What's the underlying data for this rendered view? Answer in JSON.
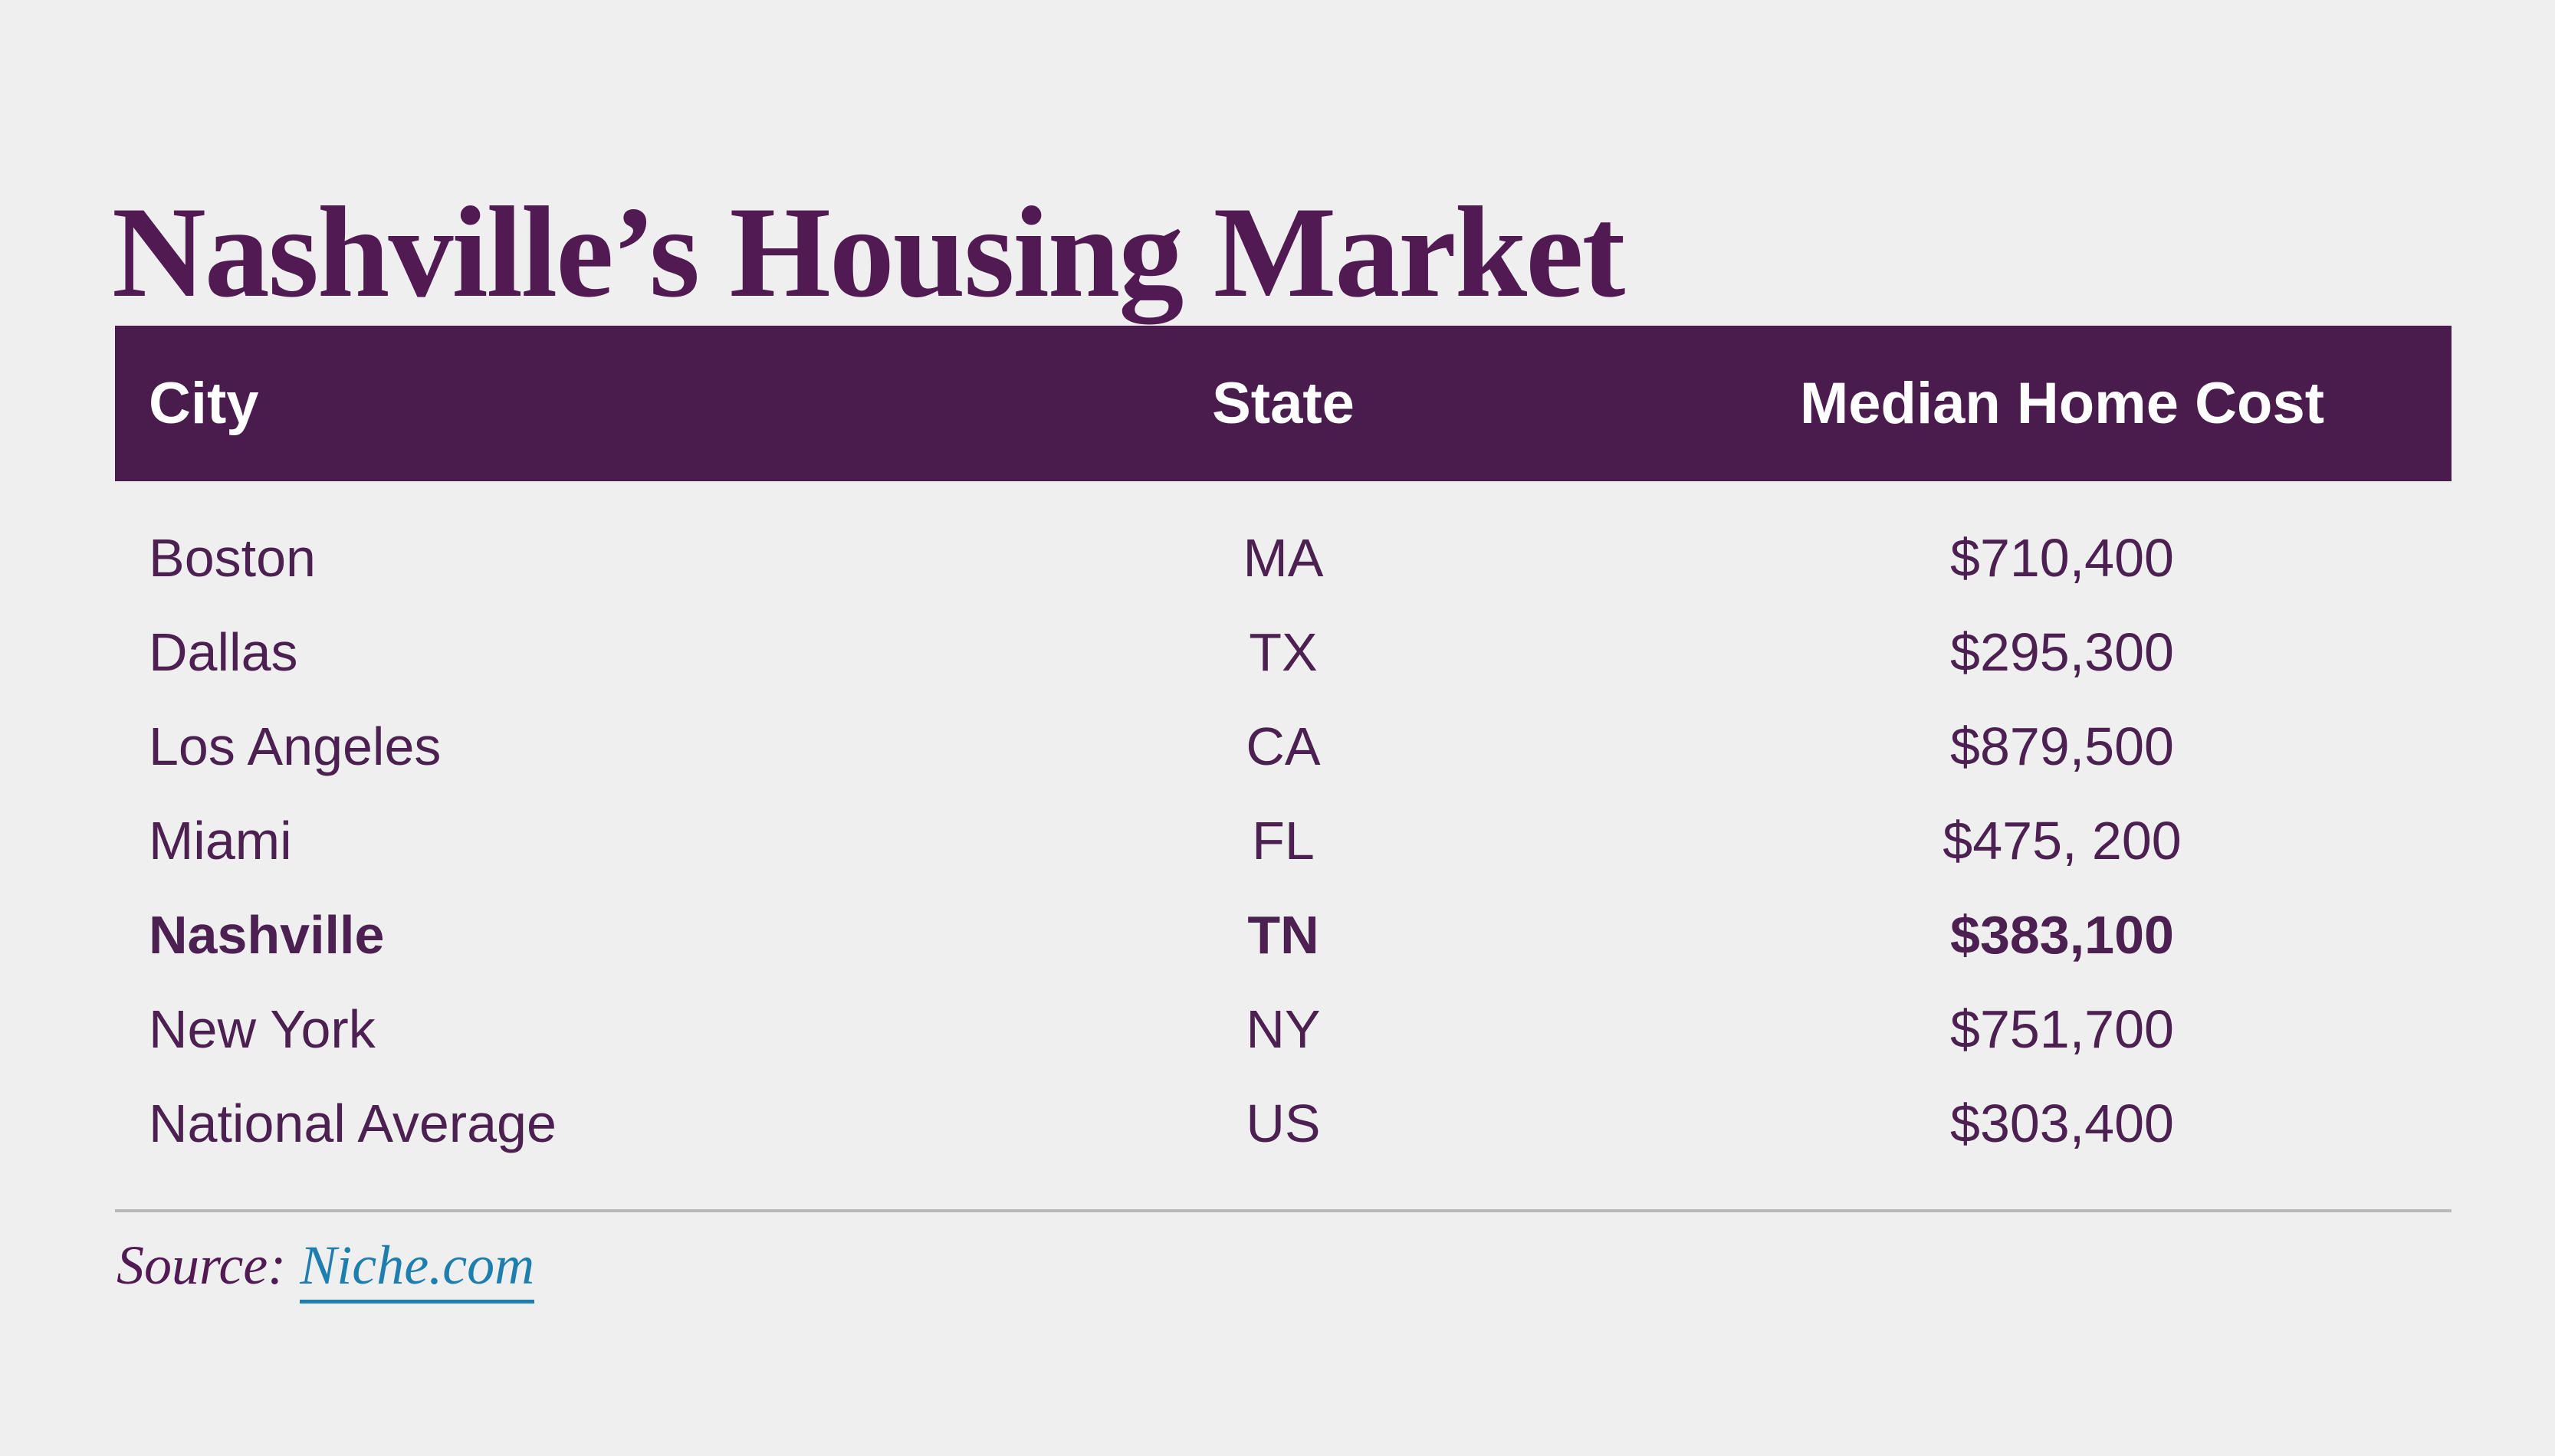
{
  "title": "Nashville’s Housing Market",
  "table": {
    "columns": {
      "city": "City",
      "state": "State",
      "cost": "Median Home Cost"
    },
    "rows": [
      {
        "city": "Boston",
        "state": "MA",
        "cost": "$710,400"
      },
      {
        "city": "Dallas",
        "state": "TX",
        "cost": "$295,300"
      },
      {
        "city": "Los Angeles",
        "state": "CA",
        "cost": "$879,500"
      },
      {
        "city": "Miami",
        "state": "FL",
        "cost": "$475, 200"
      },
      {
        "city": "Nashville",
        "state": "TN",
        "cost": "$383,100"
      },
      {
        "city": "New York",
        "state": "NY",
        "cost": "$751,700"
      },
      {
        "city": "National Average",
        "state": "US",
        "cost": "$303,400"
      }
    ],
    "highlighted_row": "Nashville"
  },
  "source": {
    "label": "Source:",
    "link": "Niche.com"
  },
  "colors": {
    "background": "#f0eff0",
    "header_bg": "#4a1b4d",
    "header_text": "#ffffff",
    "title_text": "#511a52",
    "row_text": "#4c2152",
    "link": "#1e7fae",
    "divider": "#bab8ba"
  },
  "chart_data": {
    "type": "table",
    "title": "Nashville’s Housing Market",
    "columns": [
      "City",
      "State",
      "Median Home Cost"
    ],
    "rows": [
      [
        "Boston",
        "MA",
        "$710,400"
      ],
      [
        "Dallas",
        "TX",
        "$295,300"
      ],
      [
        "Los Angeles",
        "CA",
        "$879,500"
      ],
      [
        "Miami",
        "FL",
        "$475, 200"
      ],
      [
        "Nashville",
        "TN",
        "$383,100"
      ],
      [
        "New York",
        "NY",
        "$751,700"
      ],
      [
        "National Average",
        "US",
        "$303,400"
      ]
    ],
    "cost_values_numeric": [
      710400,
      295300,
      879500,
      475200,
      383100,
      751700,
      303400
    ],
    "highlighted_row": "Nashville",
    "source": "Niche.com"
  }
}
